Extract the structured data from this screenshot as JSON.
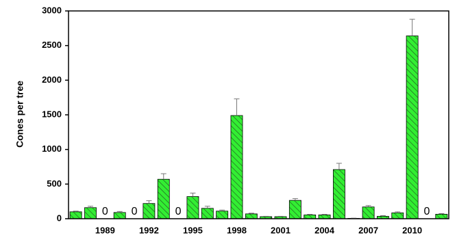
{
  "chart_data": {
    "type": "bar",
    "y_label": "Cones per tree",
    "categories": [
      null,
      null,
      "1989",
      null,
      null,
      "1992",
      null,
      null,
      "1995",
      null,
      null,
      "1998",
      null,
      null,
      "2001",
      null,
      null,
      "2004",
      null,
      null,
      "2007",
      null,
      null,
      "2010",
      null,
      null
    ],
    "series": [
      {
        "color": "#33ee33",
        "values": [
          100,
          160,
          0,
          90,
          0,
          220,
          570,
          0,
          320,
          150,
          110,
          1490,
          70,
          30,
          30,
          265,
          55,
          55,
          710,
          5,
          170,
          35,
          85,
          2640,
          0,
          65
        ],
        "errors": [
          10,
          20,
          null,
          15,
          null,
          40,
          80,
          null,
          50,
          30,
          15,
          240,
          10,
          5,
          5,
          25,
          8,
          8,
          90,
          3,
          20,
          10,
          15,
          240,
          null,
          10
        ]
      }
    ],
    "ylim": [
      0,
      3000
    ],
    "yticks": [
      0,
      500,
      1000,
      1500,
      2000,
      2500,
      3000
    ]
  }
}
